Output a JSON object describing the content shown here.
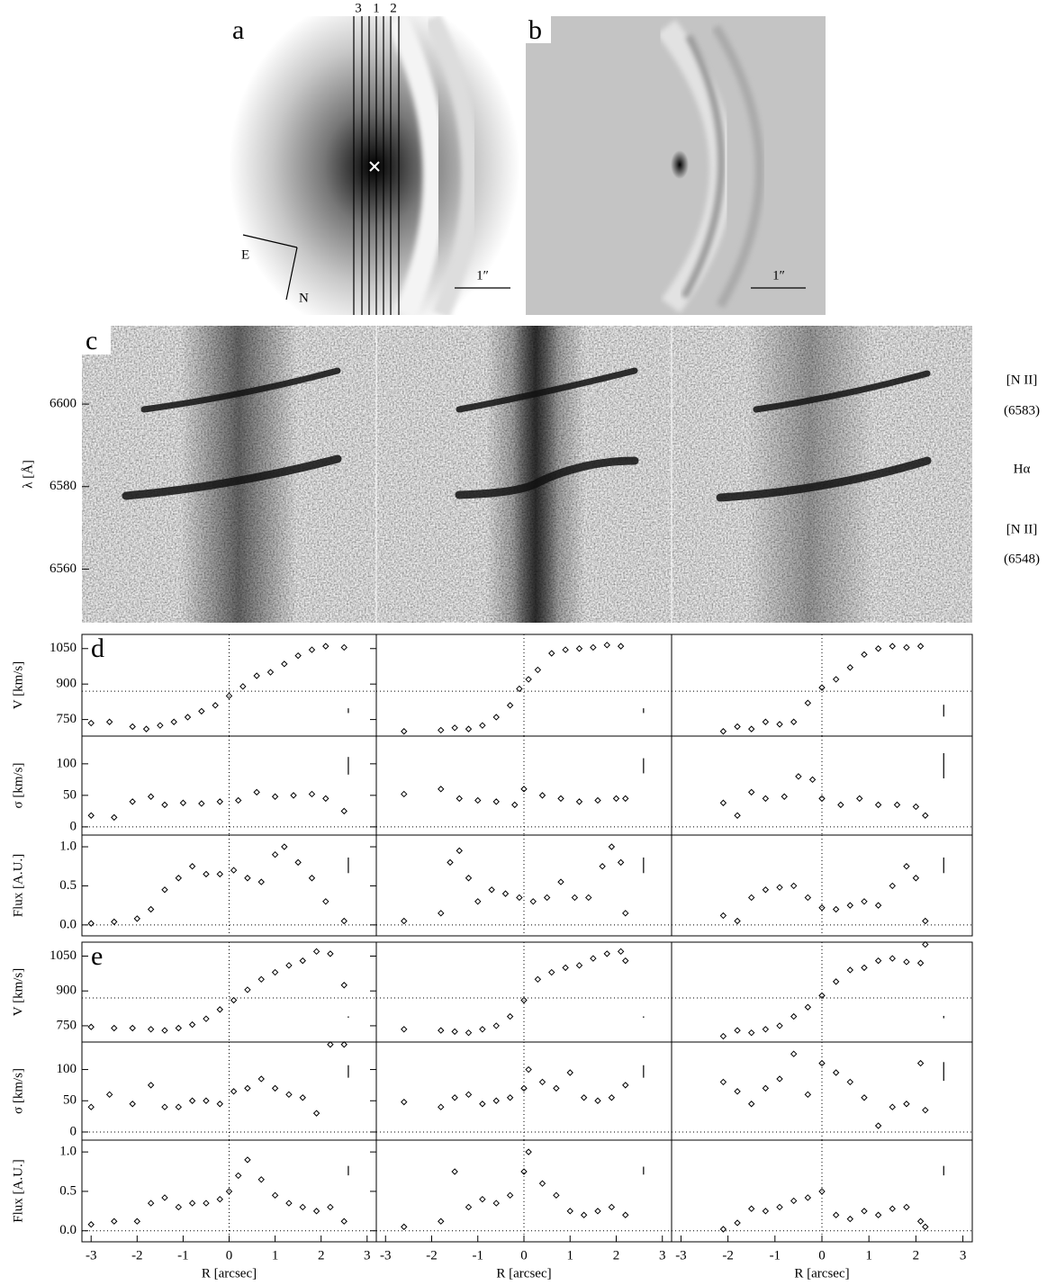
{
  "panel_a": {
    "label": "a",
    "slits": [
      "3",
      "1",
      "2"
    ],
    "compass": [
      "E",
      "N"
    ],
    "scale": "1″"
  },
  "panel_b": {
    "label": "b",
    "scale": "1″"
  },
  "panel_c": {
    "label": "c",
    "ylabel": "λ [Å]",
    "ylim": [
      6547,
      6619
    ],
    "yticks": [
      6560,
      6580,
      6600
    ],
    "lines": [
      "[N II]",
      "(6583)",
      "Hα",
      "[N II]",
      "(6548)"
    ]
  },
  "chart_data": [
    {
      "type": "scatter",
      "label": "d",
      "ylabel": "V [km/s]",
      "x": [
        -3,
        -2.6,
        -2.1,
        -1.8,
        -1.5,
        -1.2,
        -0.9,
        -0.6,
        -0.3,
        0,
        0.3,
        0.6,
        0.9,
        1.2,
        1.5,
        1.8,
        2.1,
        2.5
      ],
      "values": [
        735,
        740,
        720,
        710,
        725,
        740,
        760,
        785,
        810,
        850,
        890,
        935,
        950,
        985,
        1020,
        1045,
        1060,
        1055
      ],
      "error": 10,
      "hline": 870,
      "vline": 0,
      "xlim": [
        -3.2,
        3.2
      ],
      "ylim": [
        680,
        1110
      ],
      "yticks": [
        750,
        900,
        1050
      ]
    },
    {
      "type": "scatter",
      "x": [
        -2.6,
        -1.8,
        -1.5,
        -1.2,
        -0.9,
        -0.6,
        -0.3,
        -0.1,
        0.1,
        0.3,
        0.6,
        0.9,
        1.2,
        1.5,
        1.8,
        2.1
      ],
      "values": [
        700,
        705,
        715,
        710,
        725,
        760,
        810,
        880,
        920,
        960,
        1030,
        1045,
        1050,
        1055,
        1065,
        1060
      ],
      "error": 10,
      "hline": 870,
      "vline": 0,
      "xlim": [
        -3.2,
        3.2
      ],
      "ylim": [
        680,
        1110
      ]
    },
    {
      "type": "scatter",
      "x": [
        -2.1,
        -1.8,
        -1.5,
        -1.2,
        -0.9,
        -0.6,
        -0.3,
        0,
        0.3,
        0.6,
        0.9,
        1.2,
        1.5,
        1.8,
        2.1
      ],
      "values": [
        700,
        720,
        710,
        740,
        730,
        740,
        820,
        885,
        920,
        970,
        1025,
        1050,
        1060,
        1055,
        1060
      ],
      "error": 25,
      "hline": 870,
      "vline": 0,
      "xlim": [
        -3.2,
        3.2
      ],
      "ylim": [
        680,
        1110
      ]
    },
    {
      "type": "scatter",
      "ylabel": "σ  [km/s]",
      "x": [
        -3,
        -2.5,
        -2.1,
        -1.7,
        -1.4,
        -1,
        -0.6,
        -0.2,
        0.2,
        0.6,
        1,
        1.4,
        1.8,
        2.1,
        2.5
      ],
      "values": [
        18,
        15,
        40,
        48,
        35,
        38,
        37,
        40,
        42,
        55,
        48,
        50,
        52,
        45,
        25
      ],
      "error": 14,
      "hline": 0,
      "vline": 0,
      "xlim": [
        -3.2,
        3.2
      ],
      "ylim": [
        -13,
        144
      ],
      "yticks": [
        0,
        50,
        100
      ]
    },
    {
      "type": "scatter",
      "x": [
        -2.6,
        -1.8,
        -1.4,
        -1,
        -0.6,
        -0.2,
        0,
        0.4,
        0.8,
        1.2,
        1.6,
        2,
        2.2
      ],
      "values": [
        52,
        60,
        45,
        42,
        40,
        35,
        60,
        50,
        45,
        40,
        42,
        45,
        45
      ],
      "error": 12,
      "hline": 0,
      "vline": 0,
      "xlim": [
        -3.2,
        3.2
      ],
      "ylim": [
        -13,
        144
      ]
    },
    {
      "type": "scatter",
      "x": [
        -2.1,
        -1.8,
        -1.5,
        -1.2,
        -0.8,
        -0.5,
        -0.2,
        0,
        0.4,
        0.8,
        1.2,
        1.6,
        2,
        2.2
      ],
      "values": [
        38,
        18,
        55,
        45,
        48,
        80,
        75,
        45,
        35,
        45,
        35,
        35,
        32,
        18
      ],
      "error": 20,
      "hline": 0,
      "vline": 0,
      "xlim": [
        -3.2,
        3.2
      ],
      "ylim": [
        -13,
        144
      ]
    },
    {
      "type": "scatter",
      "ylabel": "Flux [A.U.]",
      "x": [
        -3,
        -2.5,
        -2,
        -1.7,
        -1.4,
        -1.1,
        -0.8,
        -0.5,
        -0.2,
        0.1,
        0.4,
        0.7,
        1,
        1.2,
        1.5,
        1.8,
        2.1,
        2.5
      ],
      "values": [
        0.02,
        0.04,
        0.08,
        0.2,
        0.45,
        0.6,
        0.75,
        0.65,
        0.65,
        0.7,
        0.6,
        0.55,
        0.9,
        1.0,
        0.8,
        0.6,
        0.3,
        0.05
      ],
      "error": 0.1,
      "hline": 0,
      "vline": 0,
      "xlim": [
        -3.2,
        3.2
      ],
      "ylim": [
        -0.14,
        1.15
      ],
      "yticks": [
        {
          "value": 0,
          "label": "0.0"
        },
        0.5,
        {
          "value": 1,
          "label": "1.0"
        }
      ]
    },
    {
      "type": "scatter",
      "x": [
        -2.6,
        -1.8,
        -1.6,
        -1.4,
        -1.2,
        -1,
        -0.7,
        -0.4,
        -0.1,
        0.2,
        0.5,
        0.8,
        1.1,
        1.4,
        1.7,
        1.9,
        2.1,
        2.2
      ],
      "values": [
        0.05,
        0.15,
        0.8,
        0.95,
        0.6,
        0.3,
        0.45,
        0.4,
        0.35,
        0.3,
        0.35,
        0.55,
        0.35,
        0.35,
        0.75,
        1.0,
        0.8,
        0.15
      ],
      "error": 0.1,
      "hline": 0,
      "vline": 0,
      "xlim": [
        -3.2,
        3.2
      ],
      "ylim": [
        -0.14,
        1.15
      ]
    },
    {
      "type": "scatter",
      "x": [
        -2.1,
        -1.8,
        -1.5,
        -1.2,
        -0.9,
        -0.6,
        -0.3,
        0,
        0.3,
        0.6,
        0.9,
        1.2,
        1.5,
        1.8,
        2,
        2.2
      ],
      "values": [
        0.12,
        0.05,
        0.35,
        0.45,
        0.48,
        0.5,
        0.35,
        0.22,
        0.2,
        0.25,
        0.3,
        0.25,
        0.5,
        0.75,
        0.6,
        0.05
      ],
      "error": 0.1,
      "hline": 0,
      "vline": 0,
      "xlim": [
        -3.2,
        3.2
      ],
      "ylim": [
        -0.14,
        1.15
      ]
    },
    {
      "type": "scatter",
      "label": "e",
      "ylabel": "V [km/s]",
      "x": [
        -3,
        -2.5,
        -2.1,
        -1.7,
        -1.4,
        -1.1,
        -0.8,
        -0.5,
        -0.2,
        0.1,
        0.4,
        0.7,
        1,
        1.3,
        1.6,
        1.9,
        2.2,
        2.5
      ],
      "values": [
        745,
        740,
        740,
        735,
        730,
        740,
        755,
        780,
        820,
        860,
        905,
        950,
        980,
        1010,
        1030,
        1070,
        1060,
        925
      ],
      "error": 3,
      "hline": 870,
      "vline": 0,
      "xlim": [
        -3.2,
        3.2
      ],
      "ylim": [
        680,
        1110
      ],
      "yticks": [
        750,
        900,
        1050
      ]
    },
    {
      "type": "scatter",
      "x": [
        -2.6,
        -1.8,
        -1.5,
        -1.2,
        -0.9,
        -0.6,
        -0.3,
        0,
        0.3,
        0.6,
        0.9,
        1.2,
        1.5,
        1.8,
        2.1,
        2.2
      ],
      "values": [
        735,
        730,
        725,
        720,
        735,
        750,
        790,
        860,
        950,
        980,
        1000,
        1010,
        1040,
        1060,
        1070,
        1030
      ],
      "error": 3,
      "hline": 870,
      "vline": 0,
      "xlim": [
        -3.2,
        3.2
      ],
      "ylim": [
        680,
        1110
      ]
    },
    {
      "type": "scatter",
      "x": [
        -2.1,
        -1.8,
        -1.5,
        -1.2,
        -0.9,
        -0.6,
        -0.3,
        0,
        0.3,
        0.6,
        0.9,
        1.2,
        1.5,
        1.8,
        2.1,
        2.2
      ],
      "values": [
        705,
        730,
        720,
        735,
        750,
        790,
        830,
        880,
        940,
        990,
        1000,
        1030,
        1040,
        1025,
        1020,
        1100
      ],
      "error": 5,
      "hline": 870,
      "vline": 0,
      "xlim": [
        -3.2,
        3.2
      ],
      "ylim": [
        680,
        1110
      ]
    },
    {
      "type": "scatter",
      "ylabel": "σ  [km/s]",
      "x": [
        -3,
        -2.6,
        -2.1,
        -1.7,
        -1.4,
        -1.1,
        -0.8,
        -0.5,
        -0.2,
        0.1,
        0.4,
        0.7,
        1,
        1.3,
        1.6,
        1.9,
        2.2,
        2.5
      ],
      "values": [
        40,
        60,
        45,
        75,
        40,
        40,
        50,
        50,
        45,
        65,
        70,
        85,
        70,
        60,
        55,
        30,
        140,
        140
      ],
      "error": 10,
      "hline": 0,
      "vline": 0,
      "xlim": [
        -3.2,
        3.2
      ],
      "ylim": [
        -13,
        144
      ],
      "yticks": [
        0,
        50,
        100
      ]
    },
    {
      "type": "scatter",
      "x": [
        -2.6,
        -1.8,
        -1.5,
        -1.2,
        -0.9,
        -0.6,
        -0.3,
        0,
        0.1,
        0.4,
        0.7,
        1,
        1.3,
        1.6,
        1.9,
        2.2
      ],
      "values": [
        48,
        40,
        55,
        60,
        45,
        50,
        55,
        70,
        100,
        80,
        70,
        95,
        55,
        50,
        55,
        75
      ],
      "error": 10,
      "hline": 0,
      "vline": 0,
      "xlim": [
        -3.2,
        3.2
      ],
      "ylim": [
        -13,
        144
      ]
    },
    {
      "type": "scatter",
      "x": [
        -2.1,
        -1.8,
        -1.5,
        -1.2,
        -0.9,
        -0.6,
        -0.3,
        0,
        0.3,
        0.6,
        0.9,
        1.2,
        1.5,
        1.8,
        2.1,
        2.2
      ],
      "values": [
        80,
        65,
        45,
        70,
        85,
        125,
        60,
        110,
        95,
        80,
        55,
        10,
        40,
        45,
        110,
        35
      ],
      "error": 15,
      "hline": 0,
      "vline": 0,
      "xlim": [
        -3.2,
        3.2
      ],
      "ylim": [
        -13,
        144
      ]
    },
    {
      "type": "scatter",
      "ylabel": "Flux [A.U.]",
      "xlabel": "R [arcsec]",
      "x": [
        -3,
        -2.5,
        -2,
        -1.7,
        -1.4,
        -1.1,
        -0.8,
        -0.5,
        -0.2,
        0,
        0.2,
        0.4,
        0.7,
        1,
        1.3,
        1.6,
        1.9,
        2.2,
        2.5
      ],
      "values": [
        0.08,
        0.12,
        0.12,
        0.35,
        0.42,
        0.3,
        0.35,
        0.35,
        0.4,
        0.5,
        0.7,
        0.9,
        0.65,
        0.45,
        0.35,
        0.3,
        0.25,
        0.3,
        0.12
      ],
      "error": 0.06,
      "hline": 0,
      "vline": 0,
      "xlim": [
        -3.2,
        3.2
      ],
      "ylim": [
        -0.14,
        1.15
      ],
      "yticks": [
        {
          "value": 0,
          "label": "0.0"
        },
        0.5,
        {
          "value": 1,
          "label": "1.0"
        }
      ],
      "xticks": [
        -3,
        -2,
        -1,
        0,
        1,
        2,
        3
      ]
    },
    {
      "type": "scatter",
      "xlabel": "R [arcsec]",
      "x": [
        -2.6,
        -1.8,
        -1.5,
        -1.2,
        -0.9,
        -0.6,
        -0.3,
        0,
        0.1,
        0.4,
        0.7,
        1,
        1.3,
        1.6,
        1.9,
        2.2
      ],
      "values": [
        0.05,
        0.12,
        0.75,
        0.3,
        0.4,
        0.35,
        0.45,
        0.75,
        1.0,
        0.6,
        0.45,
        0.25,
        0.2,
        0.25,
        0.3,
        0.2
      ],
      "error": 0.05,
      "hline": 0,
      "vline": 0,
      "xlim": [
        -3.2,
        3.2
      ],
      "ylim": [
        -0.14,
        1.15
      ],
      "xticks": [
        -3,
        -2,
        -1,
        0,
        1,
        2,
        3
      ]
    },
    {
      "type": "scatter",
      "xlabel": "R [arcsec]",
      "x": [
        -2.1,
        -1.8,
        -1.5,
        -1.2,
        -0.9,
        -0.6,
        -0.3,
        0,
        0.3,
        0.6,
        0.9,
        1.2,
        1.5,
        1.8,
        2.1,
        2.2
      ],
      "values": [
        0.02,
        0.1,
        0.28,
        0.25,
        0.3,
        0.38,
        0.42,
        0.5,
        0.2,
        0.15,
        0.25,
        0.2,
        0.28,
        0.3,
        0.12,
        0.05
      ],
      "error": 0.06,
      "hline": 0,
      "vline": 0,
      "xlim": [
        -3.2,
        3.2
      ],
      "ylim": [
        -0.14,
        1.15
      ],
      "xticks": [
        -3,
        -2,
        -1,
        0,
        1,
        2,
        3
      ]
    }
  ]
}
